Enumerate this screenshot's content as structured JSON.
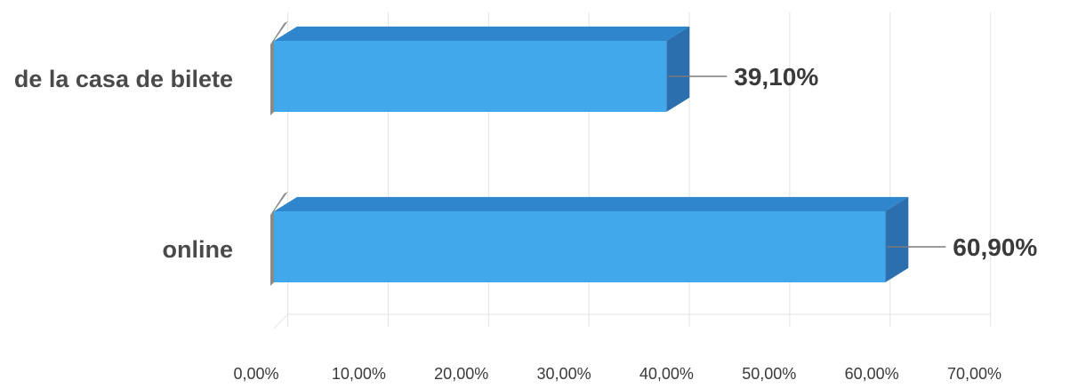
{
  "chart_data": {
    "type": "bar",
    "orientation": "horizontal",
    "style": "3d",
    "categories": [
      "de la casa de bilete",
      "online"
    ],
    "values": [
      39.1,
      60.9
    ],
    "data_labels": [
      "39,10%",
      "60,90%"
    ],
    "xlim": [
      0,
      70
    ],
    "x_ticks": [
      "0,00%",
      "10,00%",
      "20,00%",
      "30,00%",
      "40,00%",
      "50,00%",
      "60,00%",
      "70,00%"
    ],
    "grid": true,
    "legend": "none",
    "colors": {
      "bar_front": "#41a8ec",
      "bar_top": "#2f86cc",
      "bar_side": "#2b6fae",
      "floor": "#8a8a8a",
      "grid": "#e3e3e3",
      "leader_line": "#7a7a7a"
    }
  }
}
